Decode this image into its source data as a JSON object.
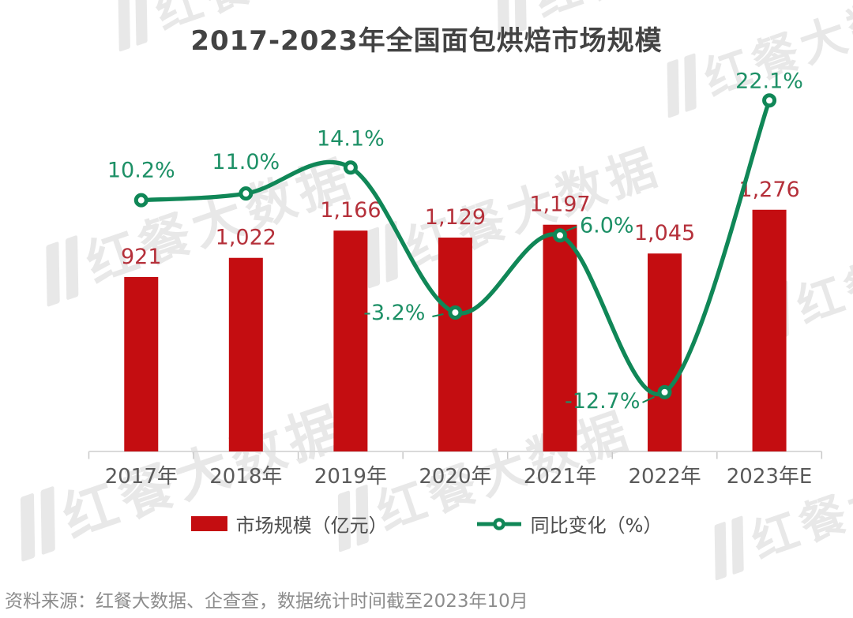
{
  "title": "2017-2023年全国面包烘焙市场规模",
  "source_note": "资料来源：红餐大数据、企查查，数据统计时间截至2023年10月",
  "watermark": {
    "text": "红餐大数据"
  },
  "colors": {
    "bar": "#C40D11",
    "bar_label": "#B5303A",
    "line": "#108757",
    "line_label": "#1D9066",
    "title": "#434343",
    "axis_line": "#DADADA",
    "tick": "#C8C8C8",
    "axis_label": "#5A5A5A",
    "legend_label": "#4D4D4D",
    "source": "#8C8C8C"
  },
  "chart_data": {
    "type": "bar+line",
    "title": "2017-2023年全国面包烘焙市场规模",
    "categories": [
      "2017年",
      "2018年",
      "2019年",
      "2020年",
      "2021年",
      "2022年",
      "2023年E"
    ],
    "series": [
      {
        "name": "市场规模（亿元）",
        "type": "bar",
        "values": [
          921,
          1022,
          1166,
          1129,
          1197,
          1045,
          1276
        ],
        "labels": [
          "921",
          "1,022",
          "1,166",
          "1,129",
          "1,197",
          "1,045",
          "1,276"
        ]
      },
      {
        "name": "同比变化（%）",
        "type": "line",
        "values": [
          10.2,
          11.0,
          14.1,
          -3.2,
          6.0,
          -12.7,
          22.1
        ],
        "labels": [
          "10.2%",
          "11.0%",
          "14.1%",
          "-3.2%",
          "6.0%",
          "-12.7%",
          "22.1%"
        ]
      }
    ],
    "bar_axis": {
      "min": 0,
      "visible": false
    },
    "line_axis": {
      "unit": "%",
      "visible": false
    },
    "grid": false,
    "legend_position": "bottom",
    "data_labels": true
  }
}
